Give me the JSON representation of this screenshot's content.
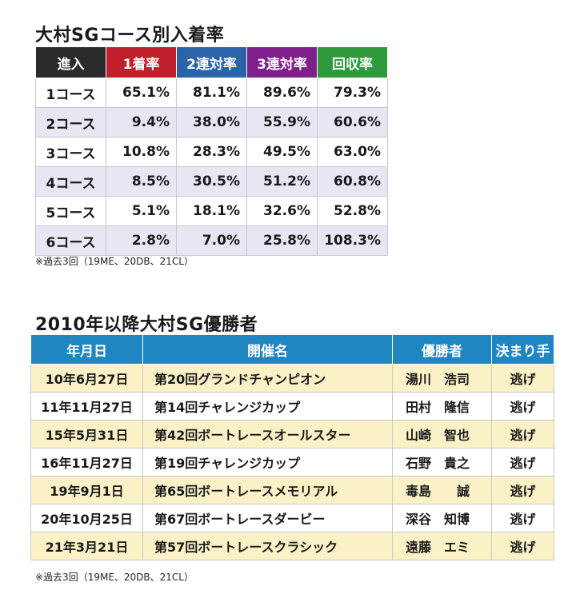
{
  "section1": {
    "title": "大村SGコース別入着率",
    "headers": [
      {
        "label": "進入",
        "color": "#2b2b2b"
      },
      {
        "label": "1着率",
        "color": "#c0202b"
      },
      {
        "label": "2連対率",
        "color": "#2a64a8"
      },
      {
        "label": "3連対率",
        "color": "#7f1f8c"
      },
      {
        "label": "回収率",
        "color": "#2e9a3c"
      }
    ],
    "rows": [
      {
        "course": "1コース",
        "first": "65.1%",
        "rentai2": "81.1%",
        "rentai3": "89.6%",
        "recovery": "79.3%"
      },
      {
        "course": "2コース",
        "first": "9.4%",
        "rentai2": "38.0%",
        "rentai3": "55.9%",
        "recovery": "60.6%"
      },
      {
        "course": "3コース",
        "first": "10.8%",
        "rentai2": "28.3%",
        "rentai3": "49.5%",
        "recovery": "63.0%"
      },
      {
        "course": "4コース",
        "first": "8.5%",
        "rentai2": "30.5%",
        "rentai3": "51.2%",
        "recovery": "60.8%"
      },
      {
        "course": "5コース",
        "first": "5.1%",
        "rentai2": "18.1%",
        "rentai3": "32.6%",
        "recovery": "52.8%"
      },
      {
        "course": "6コース",
        "first": "2.8%",
        "rentai2": "7.0%",
        "rentai3": "25.8%",
        "recovery": "108.3%"
      }
    ],
    "note": "※過去3回（19ME、20DB、21CL）"
  },
  "section2": {
    "title": "2010年以降大村SG優勝者",
    "headers": [
      "年月日",
      "開催名",
      "優勝者",
      "決まり手"
    ],
    "rows": [
      {
        "date": "10年6月27日",
        "event": "第20回グランドチャンピオン",
        "winner": "湯川　浩司",
        "kimarite": "逃げ"
      },
      {
        "date": "11年11月27日",
        "event": "第14回チャレンジカップ",
        "winner": "田村　隆信",
        "kimarite": "逃げ"
      },
      {
        "date": "15年5月31日",
        "event": "第42回ボートレースオールスター",
        "winner": "山崎　智也",
        "kimarite": "逃げ"
      },
      {
        "date": "16年11月27日",
        "event": "第19回チャレンジカップ",
        "winner": "石野　貴之",
        "kimarite": "逃げ"
      },
      {
        "date": "19年9月1日",
        "event": "第65回ボートレースメモリアル",
        "winner": "毒島　　誠",
        "kimarite": "逃げ"
      },
      {
        "date": "20年10月25日",
        "event": "第67回ボートレースダービー",
        "winner": "深谷　知博",
        "kimarite": "逃げ"
      },
      {
        "date": "21年3月21日",
        "event": "第57回ボートレースクラシック",
        "winner": "遠藤　エミ",
        "kimarite": "逃げ"
      }
    ],
    "note": "※過去3回（19ME、20DB、21CL）"
  }
}
